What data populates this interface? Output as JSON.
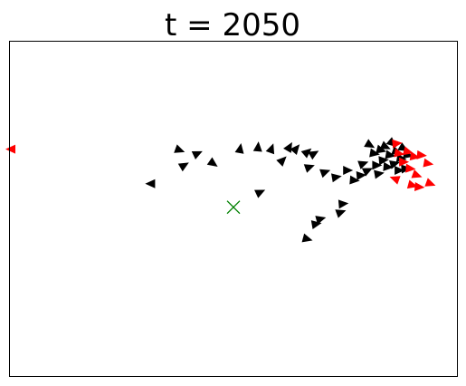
{
  "chart_data": {
    "type": "scatter",
    "title": "t = 2050",
    "xlabel": "",
    "ylabel": "",
    "xlim": [
      0,
      100
    ],
    "ylim": [
      0,
      100
    ],
    "axis_ticks": "none",
    "grid": false,
    "legend": "none",
    "marker_shape": "triangle",
    "series": [
      {
        "color": "#000000",
        "points": [
          {
            "x": 42.0,
            "y": 66.5,
            "angle": -25
          },
          {
            "x": 38.0,
            "y": 67.5,
            "angle": 20
          },
          {
            "x": 39.0,
            "y": 63.0,
            "angle": -30
          },
          {
            "x": 45.5,
            "y": 63.5,
            "angle": 35
          },
          {
            "x": 31.5,
            "y": 57.5,
            "angle": 180
          },
          {
            "x": 51.5,
            "y": 68.0,
            "angle": -80
          },
          {
            "x": 55.5,
            "y": 68.5,
            "angle": -85
          },
          {
            "x": 58.5,
            "y": 68.0,
            "angle": -70
          },
          {
            "x": 62.5,
            "y": 68.5,
            "angle": -60
          },
          {
            "x": 64.0,
            "y": 68.0,
            "angle": -50
          },
          {
            "x": 66.5,
            "y": 67.0,
            "angle": -40
          },
          {
            "x": 68.0,
            "y": 66.5,
            "angle": -30
          },
          {
            "x": 61.0,
            "y": 64.5,
            "angle": -45
          },
          {
            "x": 67.0,
            "y": 62.5,
            "angle": -20
          },
          {
            "x": 70.5,
            "y": 61.0,
            "angle": -20
          },
          {
            "x": 73.0,
            "y": 59.5,
            "angle": -10
          },
          {
            "x": 75.5,
            "y": 61.5,
            "angle": 0
          },
          {
            "x": 77.0,
            "y": 58.5,
            "angle": 5
          },
          {
            "x": 78.5,
            "y": 60.0,
            "angle": -5
          },
          {
            "x": 79.0,
            "y": 63.5,
            "angle": -20
          },
          {
            "x": 80.0,
            "y": 61.5,
            "angle": -25
          },
          {
            "x": 80.5,
            "y": 69.0,
            "angle": 30
          },
          {
            "x": 81.5,
            "y": 66.5,
            "angle": 10
          },
          {
            "x": 82.0,
            "y": 63.0,
            "angle": 0
          },
          {
            "x": 82.5,
            "y": 60.5,
            "angle": -10
          },
          {
            "x": 83.0,
            "y": 67.5,
            "angle": 15
          },
          {
            "x": 83.5,
            "y": 64.5,
            "angle": -5
          },
          {
            "x": 84.0,
            "y": 68.5,
            "angle": 25
          },
          {
            "x": 84.5,
            "y": 62.5,
            "angle": 5
          },
          {
            "x": 85.0,
            "y": 66.0,
            "angle": 10
          },
          {
            "x": 85.5,
            "y": 69.5,
            "angle": 40
          },
          {
            "x": 86.0,
            "y": 63.5,
            "angle": -15
          },
          {
            "x": 86.5,
            "y": 67.0,
            "angle": 20
          },
          {
            "x": 87.0,
            "y": 61.5,
            "angle": 0
          },
          {
            "x": 87.5,
            "y": 65.0,
            "angle": 10
          },
          {
            "x": 88.0,
            "y": 68.0,
            "angle": 30
          },
          {
            "x": 88.5,
            "y": 62.0,
            "angle": -5
          },
          {
            "x": 89.0,
            "y": 66.0,
            "angle": 15
          },
          {
            "x": 56.0,
            "y": 55.0,
            "angle": -25
          },
          {
            "x": 74.5,
            "y": 51.5,
            "angle": -5
          },
          {
            "x": 74.0,
            "y": 49.0,
            "angle": -20
          },
          {
            "x": 69.5,
            "y": 47.0,
            "angle": -15
          },
          {
            "x": 68.5,
            "y": 45.5,
            "angle": -10
          },
          {
            "x": 66.5,
            "y": 41.0,
            "angle": 15
          }
        ]
      },
      {
        "color": "#ff0000",
        "points": [
          {
            "x": 0.3,
            "y": 67.8,
            "angle": 180
          },
          {
            "x": 86.5,
            "y": 69.5,
            "angle": -5
          },
          {
            "x": 87.0,
            "y": 66.5,
            "angle": 10
          },
          {
            "x": 88.0,
            "y": 64.0,
            "angle": 0
          },
          {
            "x": 89.0,
            "y": 67.0,
            "angle": 15
          },
          {
            "x": 89.5,
            "y": 62.0,
            "angle": 5
          },
          {
            "x": 90.5,
            "y": 65.5,
            "angle": 10
          },
          {
            "x": 91.0,
            "y": 60.0,
            "angle": 20
          },
          {
            "x": 92.0,
            "y": 66.0,
            "angle": 5
          },
          {
            "x": 93.5,
            "y": 63.5,
            "angle": 10
          },
          {
            "x": 86.0,
            "y": 59.0,
            "angle": 200
          },
          {
            "x": 90.0,
            "y": 57.0,
            "angle": 15
          },
          {
            "x": 91.5,
            "y": 56.5,
            "angle": 5
          },
          {
            "x": 94.0,
            "y": 57.5,
            "angle": 20
          }
        ]
      }
    ],
    "target": {
      "x": 50.0,
      "y": 50.5,
      "color": "#008000",
      "marker": "x"
    }
  }
}
